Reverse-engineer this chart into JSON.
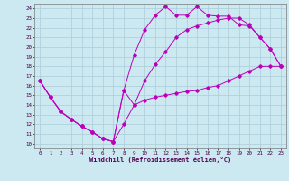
{
  "xlabel": "Windchill (Refroidissement éolien,°C)",
  "bg_color": "#cce8f0",
  "grid_color": "#aaccd8",
  "line_color": "#bb00bb",
  "x_ticks": [
    0,
    1,
    2,
    3,
    4,
    5,
    6,
    7,
    8,
    9,
    10,
    11,
    12,
    13,
    14,
    15,
    16,
    17,
    18,
    19,
    20,
    21,
    22,
    23
  ],
  "y_ticks": [
    10,
    11,
    12,
    13,
    14,
    15,
    16,
    17,
    18,
    19,
    20,
    21,
    22,
    23,
    24
  ],
  "xlim": [
    -0.5,
    23.5
  ],
  "ylim": [
    9.5,
    24.5
  ],
  "s1_x": [
    0,
    1,
    2,
    3,
    4,
    5,
    6,
    7,
    8,
    9,
    10,
    11,
    12,
    13,
    14,
    15,
    16,
    17,
    18,
    19,
    20,
    21,
    22,
    23
  ],
  "s1_y": [
    16.5,
    14.8,
    13.3,
    12.5,
    11.8,
    11.2,
    10.5,
    10.2,
    12.0,
    14.0,
    14.5,
    14.8,
    15.0,
    15.2,
    15.4,
    15.5,
    15.8,
    16.0,
    16.5,
    17.0,
    17.5,
    18.0,
    18.0,
    18.0
  ],
  "s2_x": [
    0,
    1,
    2,
    3,
    4,
    5,
    6,
    7,
    8,
    9,
    10,
    11,
    12,
    13,
    14,
    15,
    16,
    17,
    18,
    19,
    20,
    21,
    22,
    23
  ],
  "s2_y": [
    16.5,
    14.8,
    13.3,
    12.5,
    11.8,
    11.2,
    10.5,
    10.2,
    15.5,
    19.2,
    21.8,
    23.3,
    24.2,
    23.3,
    23.3,
    24.2,
    23.3,
    23.2,
    23.2,
    22.3,
    22.2,
    21.0,
    19.8,
    18.0
  ],
  "s3_x": [
    0,
    1,
    2,
    3,
    4,
    5,
    6,
    7,
    8,
    9,
    10,
    11,
    12,
    13,
    14,
    15,
    16,
    17,
    18,
    19,
    20,
    21,
    22,
    23
  ],
  "s3_y": [
    16.5,
    14.8,
    13.3,
    12.5,
    11.8,
    11.2,
    10.5,
    10.2,
    15.5,
    14.0,
    16.5,
    18.2,
    19.5,
    21.0,
    21.8,
    22.2,
    22.5,
    22.8,
    23.0,
    23.0,
    22.3,
    21.0,
    19.8,
    18.0
  ]
}
